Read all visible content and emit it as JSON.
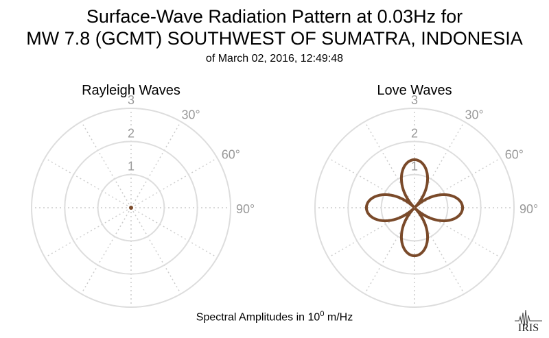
{
  "title_line1": "Surface-Wave Radiation Pattern at 0.03Hz for",
  "title_line2": "MW 7.8 (GCMT) SOUTHWEST OF SUMATRA, INDONESIA",
  "subtitle": "of March 02, 2016, 12:49:48",
  "footer": {
    "prefix": "Spectral Amplitudes in 10",
    "exponent": "0",
    "suffix": " m/Hz"
  },
  "logo_text": "IRIS",
  "colors": {
    "pattern": "#7a4a2a",
    "grid": "#dddddd",
    "spokes": "#cccccc",
    "tick_text": "#999999"
  },
  "chart_data": [
    {
      "type": "polar",
      "title": "Rayleigh Waves",
      "r_ticks": [
        1,
        2,
        3
      ],
      "r_tick_labels": [
        "1",
        "2",
        "3"
      ],
      "rlim": [
        0,
        3
      ],
      "angle_labels": [
        "30°",
        "60°",
        "90°"
      ],
      "angle_label_values": [
        30,
        60,
        90
      ],
      "grid": true,
      "pattern": {
        "shape": "point",
        "amplitude": 0.05
      }
    },
    {
      "type": "polar",
      "title": "Love Waves",
      "r_ticks": [
        1,
        2,
        3
      ],
      "r_tick_labels": [
        "1",
        "2",
        "3"
      ],
      "rlim": [
        0,
        3
      ],
      "angle_labels": [
        "30°",
        "60°",
        "90°"
      ],
      "angle_label_values": [
        30,
        60,
        90
      ],
      "grid": true,
      "pattern": {
        "shape": "four-lobe",
        "amplitude": 1.45,
        "lobe_azimuths": [
          0,
          90,
          180,
          270
        ]
      }
    }
  ]
}
